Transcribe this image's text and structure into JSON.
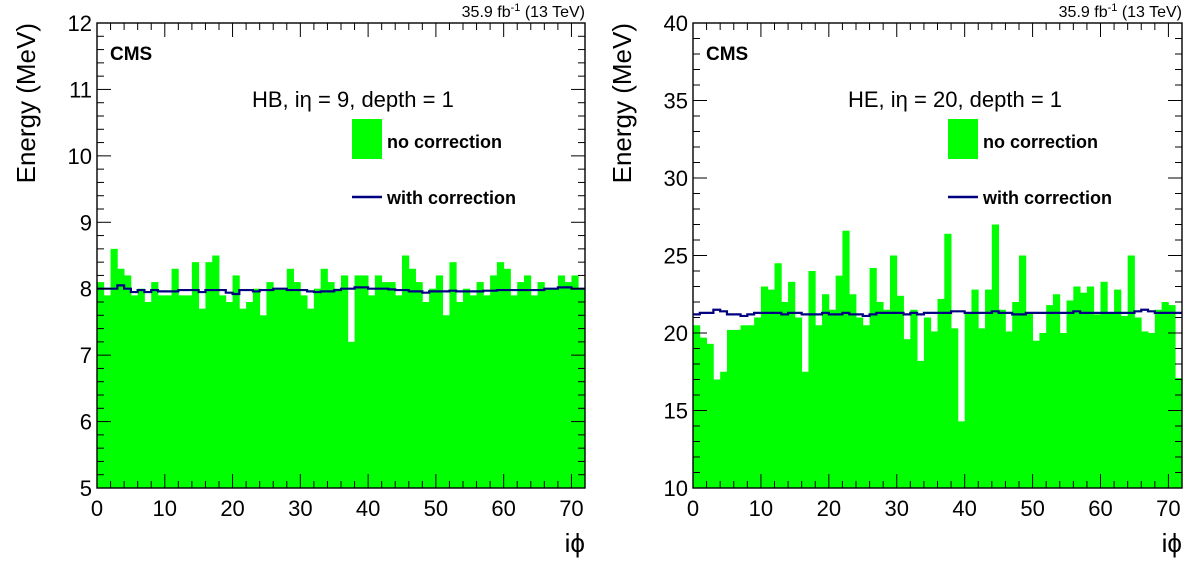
{
  "lumi_label": "35.9 fb",
  "lumi_sup": "-1",
  "energy_label": "(13 TeV)",
  "experiment": "CMS",
  "colors": {
    "fill": "#00ff00",
    "line": "#000080",
    "axis": "#000000"
  },
  "chart_data": [
    {
      "type": "bar",
      "title": "HB, iη = 9, depth = 1",
      "xlabel": "iϕ",
      "ylabel": "Energy (MeV)",
      "xlim": [
        0,
        72
      ],
      "ylim": [
        5,
        12
      ],
      "xticks": [
        "0",
        "10",
        "20",
        "30",
        "40",
        "50",
        "60",
        "70"
      ],
      "yticks": [
        "5",
        "6",
        "7",
        "8",
        "9",
        "10",
        "11",
        "12"
      ],
      "legend_position": "top-right",
      "series": [
        {
          "name": "no correction",
          "style": "filled-histogram",
          "x": [
            1,
            2,
            3,
            4,
            5,
            6,
            7,
            8,
            9,
            10,
            11,
            12,
            13,
            14,
            15,
            16,
            17,
            18,
            19,
            20,
            21,
            22,
            23,
            24,
            25,
            26,
            27,
            28,
            29,
            30,
            31,
            32,
            33,
            34,
            35,
            36,
            37,
            38,
            39,
            40,
            41,
            42,
            43,
            44,
            45,
            46,
            47,
            48,
            49,
            50,
            51,
            52,
            53,
            54,
            55,
            56,
            57,
            58,
            59,
            60,
            61,
            62,
            63,
            64,
            65,
            66,
            67,
            68,
            69,
            70,
            71,
            72
          ],
          "values": [
            8.1,
            7.9,
            8.6,
            8.3,
            8.2,
            7.9,
            8.0,
            7.8,
            8.1,
            7.9,
            7.9,
            8.3,
            7.9,
            7.9,
            8.4,
            7.7,
            8.4,
            8.5,
            7.9,
            7.8,
            8.2,
            7.7,
            7.8,
            8.0,
            7.6,
            8.1,
            8.0,
            8.0,
            8.3,
            8.1,
            7.9,
            7.7,
            8.0,
            8.3,
            8.1,
            8.0,
            8.2,
            7.2,
            8.2,
            8.2,
            7.9,
            8.2,
            8.1,
            8.1,
            7.9,
            8.5,
            8.3,
            8.1,
            7.8,
            8.0,
            8.2,
            7.6,
            8.4,
            7.8,
            8.0,
            7.9,
            8.1,
            7.9,
            8.2,
            8.4,
            8.3,
            7.9,
            8.1,
            8.2,
            7.9,
            8.1,
            8.0,
            8.0,
            8.2,
            8.1,
            8.2,
            8.0
          ]
        },
        {
          "name": "with correction",
          "style": "step-line",
          "x": [
            1,
            2,
            3,
            4,
            5,
            6,
            7,
            8,
            9,
            10,
            11,
            12,
            13,
            14,
            15,
            16,
            17,
            18,
            19,
            20,
            21,
            22,
            23,
            24,
            25,
            26,
            27,
            28,
            29,
            30,
            31,
            32,
            33,
            34,
            35,
            36,
            37,
            38,
            39,
            40,
            41,
            42,
            43,
            44,
            45,
            46,
            47,
            48,
            49,
            50,
            51,
            52,
            53,
            54,
            55,
            56,
            57,
            58,
            59,
            60,
            61,
            62,
            63,
            64,
            65,
            66,
            67,
            68,
            69,
            70,
            71,
            72
          ],
          "values": [
            8.0,
            8.0,
            8.0,
            8.05,
            8.0,
            7.95,
            7.98,
            7.95,
            7.98,
            7.96,
            7.96,
            7.96,
            7.98,
            7.98,
            7.98,
            7.95,
            7.98,
            7.98,
            7.98,
            7.94,
            7.92,
            7.98,
            7.98,
            7.96,
            7.98,
            7.98,
            8.0,
            8.0,
            7.98,
            7.98,
            7.98,
            7.96,
            7.95,
            7.96,
            7.96,
            7.98,
            8.0,
            8.0,
            8.02,
            8.02,
            8.0,
            8.0,
            8.0,
            7.99,
            7.98,
            7.98,
            7.96,
            7.96,
            7.94,
            7.96,
            7.96,
            7.96,
            7.97,
            7.96,
            7.96,
            7.96,
            7.96,
            7.97,
            7.97,
            7.98,
            7.98,
            7.98,
            7.98,
            7.98,
            7.98,
            7.98,
            8.0,
            8.0,
            8.02,
            8.02,
            8.0,
            8.0
          ]
        }
      ]
    },
    {
      "type": "bar",
      "title": "HE, iη = 20, depth = 1",
      "xlabel": "iϕ",
      "ylabel": "Energy (MeV)",
      "xlim": [
        0,
        72
      ],
      "ylim": [
        10,
        40
      ],
      "xticks": [
        "0",
        "10",
        "20",
        "30",
        "40",
        "50",
        "60",
        "70"
      ],
      "yticks": [
        "10",
        "15",
        "20",
        "25",
        "30",
        "35",
        "40"
      ],
      "legend_position": "top-right",
      "series": [
        {
          "name": "no correction",
          "style": "filled-histogram",
          "x": [
            1,
            2,
            3,
            4,
            5,
            6,
            7,
            8,
            9,
            10,
            11,
            12,
            13,
            14,
            15,
            16,
            17,
            18,
            19,
            20,
            21,
            22,
            23,
            24,
            25,
            26,
            27,
            28,
            29,
            30,
            31,
            32,
            33,
            34,
            35,
            36,
            37,
            38,
            39,
            40,
            41,
            42,
            43,
            44,
            45,
            46,
            47,
            48,
            49,
            50,
            51,
            52,
            53,
            54,
            55,
            56,
            57,
            58,
            59,
            60,
            61,
            62,
            63,
            64,
            65,
            66,
            67,
            68,
            69,
            70,
            71,
            72
          ],
          "values": [
            20.5,
            19.7,
            19.3,
            17.0,
            17.5,
            20.2,
            20.2,
            20.5,
            20.5,
            21.0,
            23.0,
            22.8,
            24.5,
            22.0,
            23.3,
            21.0,
            17.5,
            24.0,
            20.5,
            22.5,
            21.5,
            23.7,
            26.6,
            22.5,
            21.0,
            20.5,
            24.2,
            22.0,
            21.5,
            25.0,
            22.4,
            19.6,
            21.5,
            18.2,
            21.0,
            20.1,
            22.2,
            26.4,
            20.3,
            14.3,
            21.3,
            22.8,
            20.3,
            22.8,
            27.0,
            21.5,
            20.1,
            22.0,
            25.0,
            21.3,
            19.5,
            20.0,
            21.8,
            22.5,
            20.0,
            22.1,
            23.0,
            22.6,
            23.0,
            21.2,
            23.3,
            21.3,
            22.8,
            21.1,
            25.0,
            21.0,
            20.1,
            20.0,
            21.5,
            22.0,
            21.8,
            17.1
          ]
        },
        {
          "name": "with correction",
          "style": "step-line",
          "x": [
            1,
            2,
            3,
            4,
            5,
            6,
            7,
            8,
            9,
            10,
            11,
            12,
            13,
            14,
            15,
            16,
            17,
            18,
            19,
            20,
            21,
            22,
            23,
            24,
            25,
            26,
            27,
            28,
            29,
            30,
            31,
            32,
            33,
            34,
            35,
            36,
            37,
            38,
            39,
            40,
            41,
            42,
            43,
            44,
            45,
            46,
            47,
            48,
            49,
            50,
            51,
            52,
            53,
            54,
            55,
            56,
            57,
            58,
            59,
            60,
            61,
            62,
            63,
            64,
            65,
            66,
            67,
            68,
            69,
            70,
            71,
            72
          ],
          "values": [
            21.2,
            21.3,
            21.3,
            21.5,
            21.4,
            21.2,
            21.2,
            21.1,
            21.2,
            21.3,
            21.3,
            21.3,
            21.3,
            21.2,
            21.3,
            21.3,
            21.2,
            21.2,
            21.2,
            21.3,
            21.2,
            21.2,
            21.3,
            21.2,
            21.2,
            21.1,
            21.2,
            21.3,
            21.3,
            21.3,
            21.3,
            21.2,
            21.3,
            21.2,
            21.3,
            21.3,
            21.3,
            21.3,
            21.4,
            21.4,
            21.3,
            21.3,
            21.3,
            21.3,
            21.4,
            21.3,
            21.3,
            21.2,
            21.2,
            21.3,
            21.3,
            21.3,
            21.3,
            21.3,
            21.3,
            21.3,
            21.4,
            21.3,
            21.3,
            21.3,
            21.3,
            21.3,
            21.3,
            21.3,
            21.3,
            21.4,
            21.5,
            21.4,
            21.3,
            21.3,
            21.3,
            21.3
          ]
        }
      ]
    }
  ]
}
